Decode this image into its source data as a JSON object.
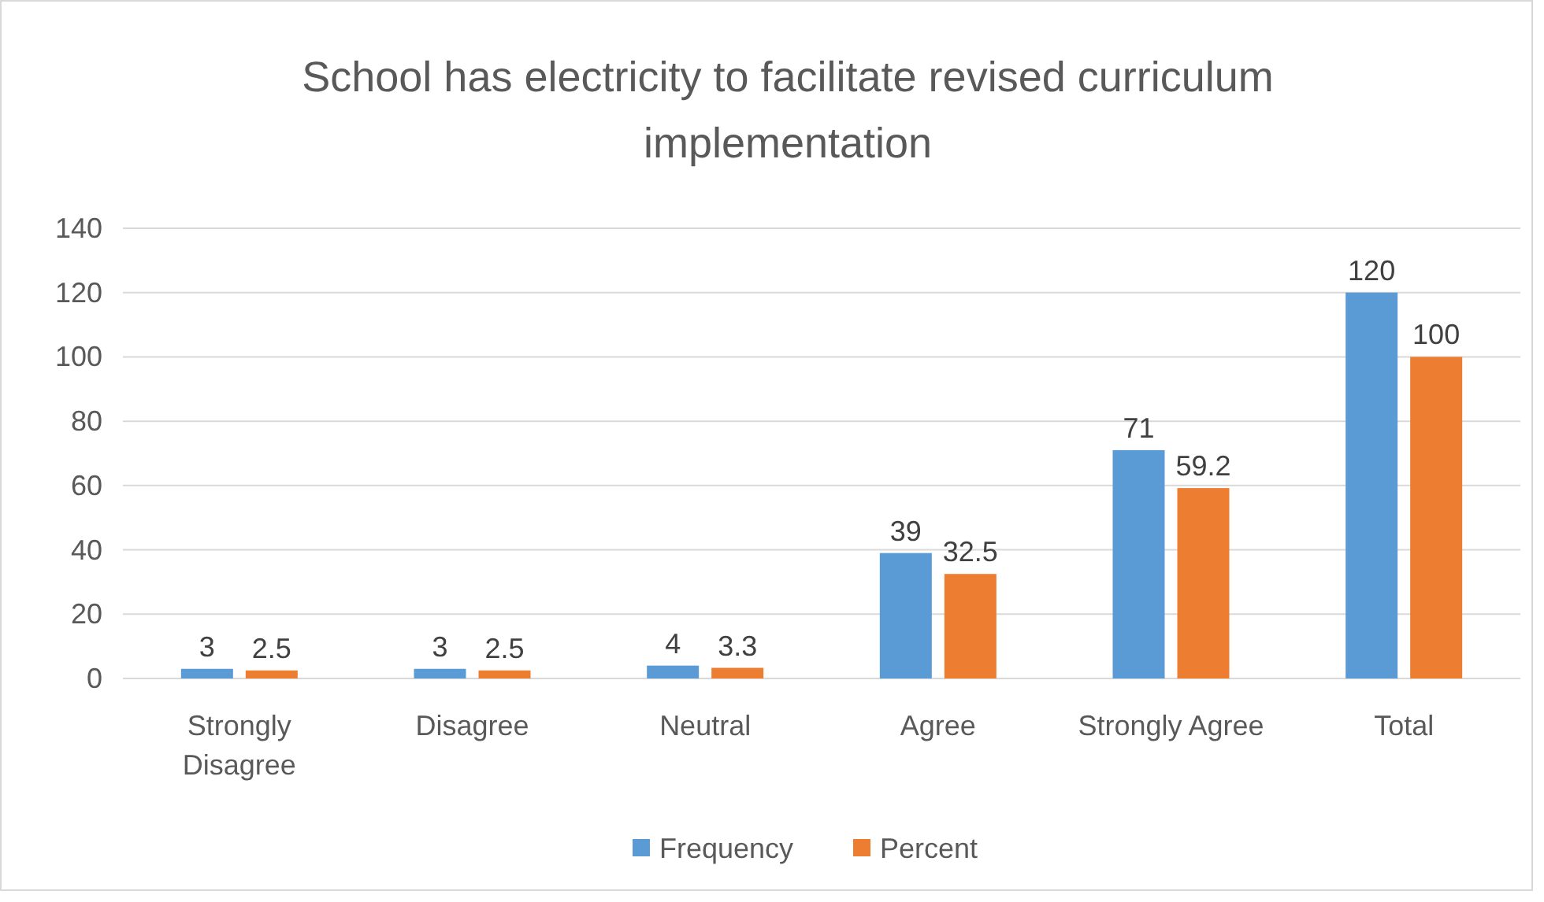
{
  "chart_data": {
    "type": "bar",
    "title": "School has electricity to facilitate revised curriculum implementation",
    "categories": [
      "Strongly Disagree",
      "Disagree",
      "Neutral",
      "Agree",
      "Strongly Agree",
      "Total"
    ],
    "series": [
      {
        "name": "Frequency",
        "color": "#5b9bd5",
        "values": [
          3,
          3,
          4,
          39,
          71,
          120
        ]
      },
      {
        "name": "Percent",
        "color": "#ed7d31",
        "values": [
          2.5,
          2.5,
          3.3,
          32.5,
          59.2,
          100
        ]
      }
    ],
    "ylim": [
      0,
      140
    ],
    "yticks": [
      0,
      20,
      40,
      60,
      80,
      100,
      120,
      140
    ],
    "grid": "y",
    "legend": "bottom",
    "data_labels": true
  }
}
